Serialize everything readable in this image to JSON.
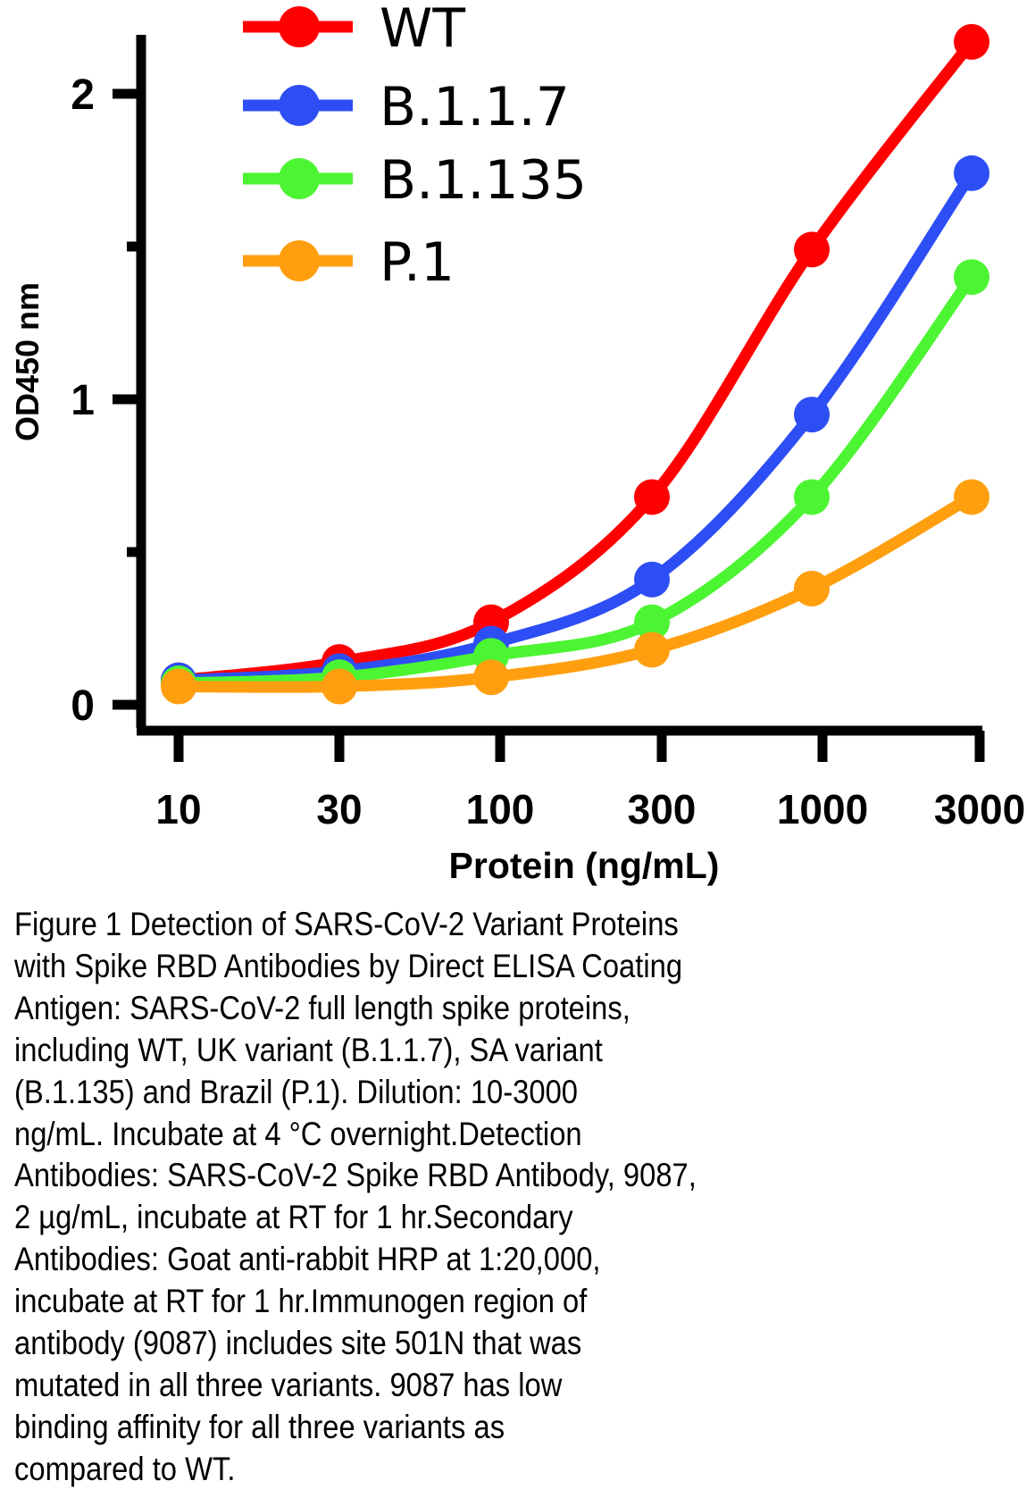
{
  "chart_data": {
    "type": "line",
    "title": "",
    "xlabel": "Protein (ng/mL)",
    "ylabel": "OD450 nm",
    "x_scale": "categorical (log-spaced dilution series)",
    "categories": [
      "10",
      "30",
      "100",
      "300",
      "1000",
      "3000"
    ],
    "ylim": [
      0,
      2.2
    ],
    "y_ticks": [
      {
        "value": 0,
        "label": "0"
      },
      {
        "value": 0.5,
        "label": ""
      },
      {
        "value": 1,
        "label": "1"
      },
      {
        "value": 1.5,
        "label": ""
      },
      {
        "value": 2,
        "label": "2"
      }
    ],
    "grid": false,
    "legend_position": "top-left",
    "series": [
      {
        "name": "WT",
        "color": "#ff0000",
        "values": [
          0.08,
          0.14,
          0.27,
          0.68,
          1.49,
          2.17
        ]
      },
      {
        "name": "B.1.1.7",
        "color": "#2d4ef5",
        "values": [
          0.08,
          0.11,
          0.2,
          0.41,
          0.95,
          1.74
        ]
      },
      {
        "name": "B.1.135",
        "color": "#4cf532",
        "values": [
          0.07,
          0.09,
          0.16,
          0.27,
          0.68,
          1.4
        ]
      },
      {
        "name": "P.1",
        "color": "#ff9f0f",
        "values": [
          0.06,
          0.06,
          0.09,
          0.18,
          0.38,
          0.68
        ]
      }
    ]
  },
  "caption": {
    "lines": [
      "Figure 1 Detection of SARS-CoV-2 Variant Proteins",
      "with Spike RBD Antibodies by Direct ELISA Coating",
      "Antigen: SARS-CoV-2 full length spike proteins,",
      "including WT, UK variant (B.1.1.7), SA variant",
      "(B.1.135) and Brazil (P.1). Dilution: 10-3000",
      "ng/mL. Incubate at 4 °C overnight.Detection",
      "Antibodies: SARS-CoV-2 Spike RBD Antibody, 9087,",
      "2 µg/mL, incubate at RT for 1 hr.Secondary",
      "Antibodies: Goat anti-rabbit HRP at 1:20,000,",
      "incubate at RT for 1 hr.Immunogen region of",
      "antibody (9087) includes site 501N that was",
      "mutated in all three variants. 9087 has low",
      "binding affinity for all three variants as",
      "compared to WT."
    ]
  }
}
